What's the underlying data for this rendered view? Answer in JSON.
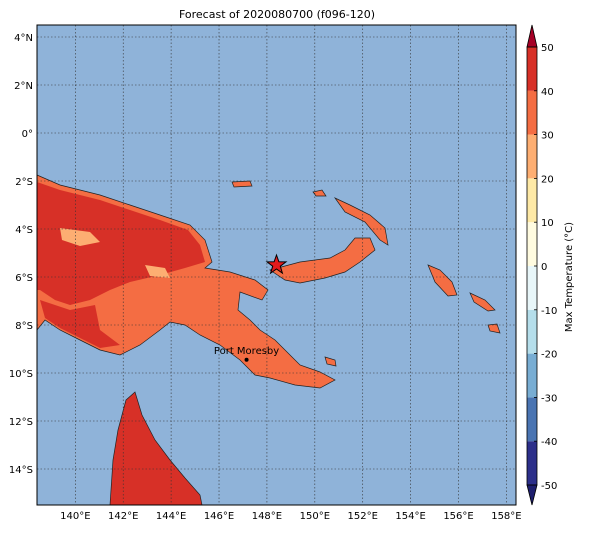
{
  "map": {
    "title": "Forecast of 2020080700 (f096-120)",
    "lon_lim": [
      138.4,
      158.4
    ],
    "lat_lim": [
      4.5,
      -15.5
    ],
    "lon_ticks": [
      {
        "value": 140,
        "label": "140°E"
      },
      {
        "value": 142,
        "label": "142°E"
      },
      {
        "value": 144,
        "label": "144°E"
      },
      {
        "value": 146,
        "label": "146°E"
      },
      {
        "value": 148,
        "label": "148°E"
      },
      {
        "value": 150,
        "label": "150°E"
      },
      {
        "value": 152,
        "label": "152°E"
      },
      {
        "value": 154,
        "label": "154°E"
      },
      {
        "value": 156,
        "label": "156°E"
      },
      {
        "value": 158,
        "label": "158°E"
      }
    ],
    "lat_ticks": [
      {
        "value": 4,
        "label": "4°N"
      },
      {
        "value": 2,
        "label": "2°N"
      },
      {
        "value": 0,
        "label": "0°"
      },
      {
        "value": -2,
        "label": "2°S"
      },
      {
        "value": -4,
        "label": "4°S"
      },
      {
        "value": -6,
        "label": "6°S"
      },
      {
        "value": -8,
        "label": "8°S"
      },
      {
        "value": -10,
        "label": "10°S"
      },
      {
        "value": -12,
        "label": "12°S"
      },
      {
        "value": -14,
        "label": "14°S"
      }
    ],
    "colorbar": {
      "label": "Max Temperature (°C)",
      "lim": [
        -50,
        50
      ],
      "ticks": [
        -50,
        -40,
        -30,
        -20,
        -10,
        0,
        10,
        20,
        30,
        40,
        50
      ],
      "colors": [
        "#2c2f8a",
        "#4a74b2",
        "#78add3",
        "#b5deeb",
        "#e8f6f9",
        "#fffbe0",
        "#fee9a6",
        "#fdae72",
        "#f46d43",
        "#d73027"
      ],
      "under_color": "#1e1f6e",
      "over_color": "#a50026"
    },
    "places": [
      {
        "label": "Port Moresby",
        "lon": 147.15,
        "lat": -9.45
      }
    ],
    "star": {
      "lon": 148.4,
      "lat": -5.5
    }
  }
}
